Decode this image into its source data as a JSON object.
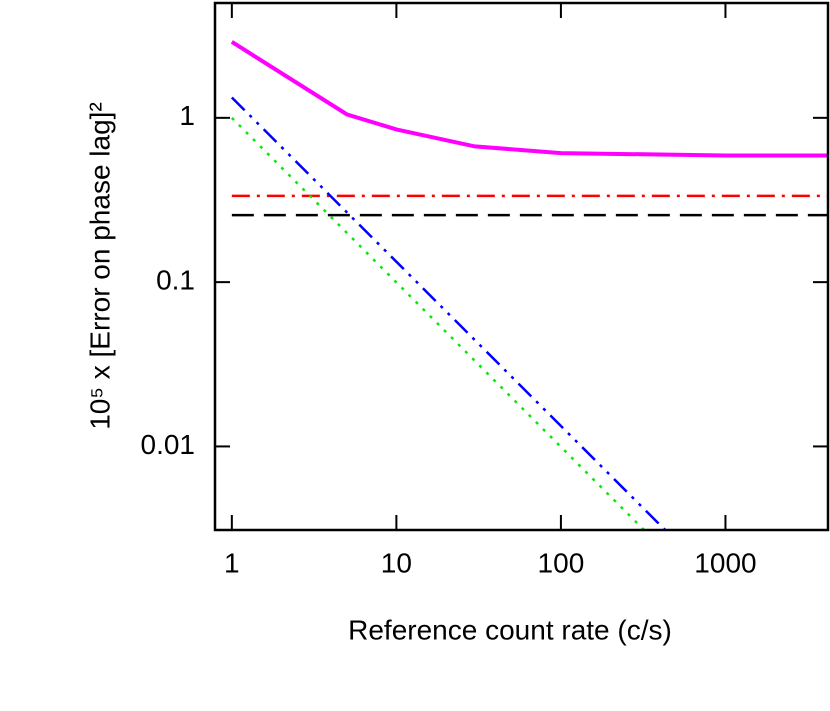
{
  "chart_data": {
    "type": "line",
    "x_label": "Reference count rate (c/s)",
    "y_label": "10⁵ x [Error on phase lag]²",
    "log_x": true,
    "log_y": true,
    "xlim": [
      0.79,
      4200
    ],
    "ylim": [
      0.0031,
      5
    ],
    "xticks": [
      1,
      10,
      100,
      1000
    ],
    "yticks": [
      0.01,
      0.1,
      1
    ],
    "series": [
      {
        "color": "#ff00ff",
        "dash": "solid",
        "x": [
          1,
          5,
          10,
          30,
          100,
          1000,
          4200
        ],
        "values": [
          2.9,
          1.05,
          0.85,
          0.67,
          0.61,
          0.59,
          0.59
        ]
      },
      {
        "color": "#ff0000",
        "dash": "dash-dot",
        "x": [
          1,
          4200
        ],
        "values": [
          0.335,
          0.335
        ]
      },
      {
        "color": "#000000",
        "dash": "dashed",
        "x": [
          1,
          4200
        ],
        "values": [
          0.256,
          0.256
        ]
      },
      {
        "color": "#0000ff",
        "dash": "dash-dot-dot",
        "x": [
          1,
          430
        ],
        "values": [
          1.33,
          0.0031
        ]
      },
      {
        "color": "#00ee00",
        "dash": "dotted",
        "x": [
          1,
          320
        ],
        "values": [
          1,
          0.0031
        ]
      }
    ]
  }
}
